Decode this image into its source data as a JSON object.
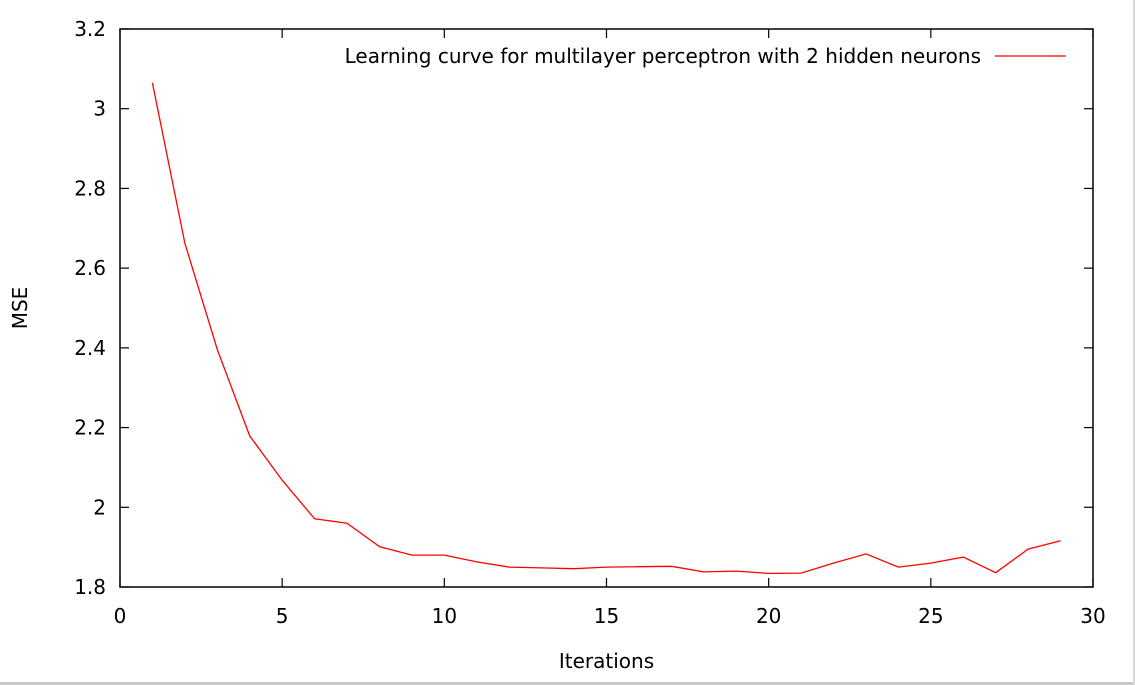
{
  "chart_data": {
    "type": "line",
    "xlabel": "Iterations",
    "ylabel": "MSE",
    "xlim": [
      0,
      30
    ],
    "ylim": [
      1.8,
      3.2
    ],
    "x_ticks": [
      "0",
      "5",
      "10",
      "15",
      "20",
      "25",
      "30"
    ],
    "y_ticks": [
      "1.8",
      "2",
      "2.2",
      "2.4",
      "2.6",
      "2.8",
      "3",
      "3.2"
    ],
    "x_tick_values": [
      0,
      5,
      10,
      15,
      20,
      25,
      30
    ],
    "y_tick_values": [
      1.8,
      2.0,
      2.2,
      2.4,
      2.6,
      2.8,
      3.0,
      3.2
    ],
    "grid": false,
    "legend_position": "top-right",
    "series": [
      {
        "name": "Learning curve for multilayer perceptron with 2 hidden neurons",
        "color": "#ff0000",
        "x": [
          1,
          2,
          3,
          4,
          5,
          6,
          7,
          8,
          9,
          10,
          11,
          12,
          13,
          14,
          15,
          16,
          17,
          18,
          19,
          20,
          21,
          22,
          23,
          24,
          25,
          26,
          27,
          28,
          29
        ],
        "y": [
          3.065,
          2.662,
          2.396,
          2.179,
          2.068,
          1.971,
          1.96,
          1.901,
          1.88,
          1.88,
          1.863,
          1.85,
          1.848,
          1.846,
          1.85,
          1.851,
          1.852,
          1.838,
          1.84,
          1.834,
          1.835,
          1.86,
          1.883,
          1.85,
          1.86,
          1.875,
          1.836,
          1.895,
          1.916
        ]
      }
    ]
  }
}
